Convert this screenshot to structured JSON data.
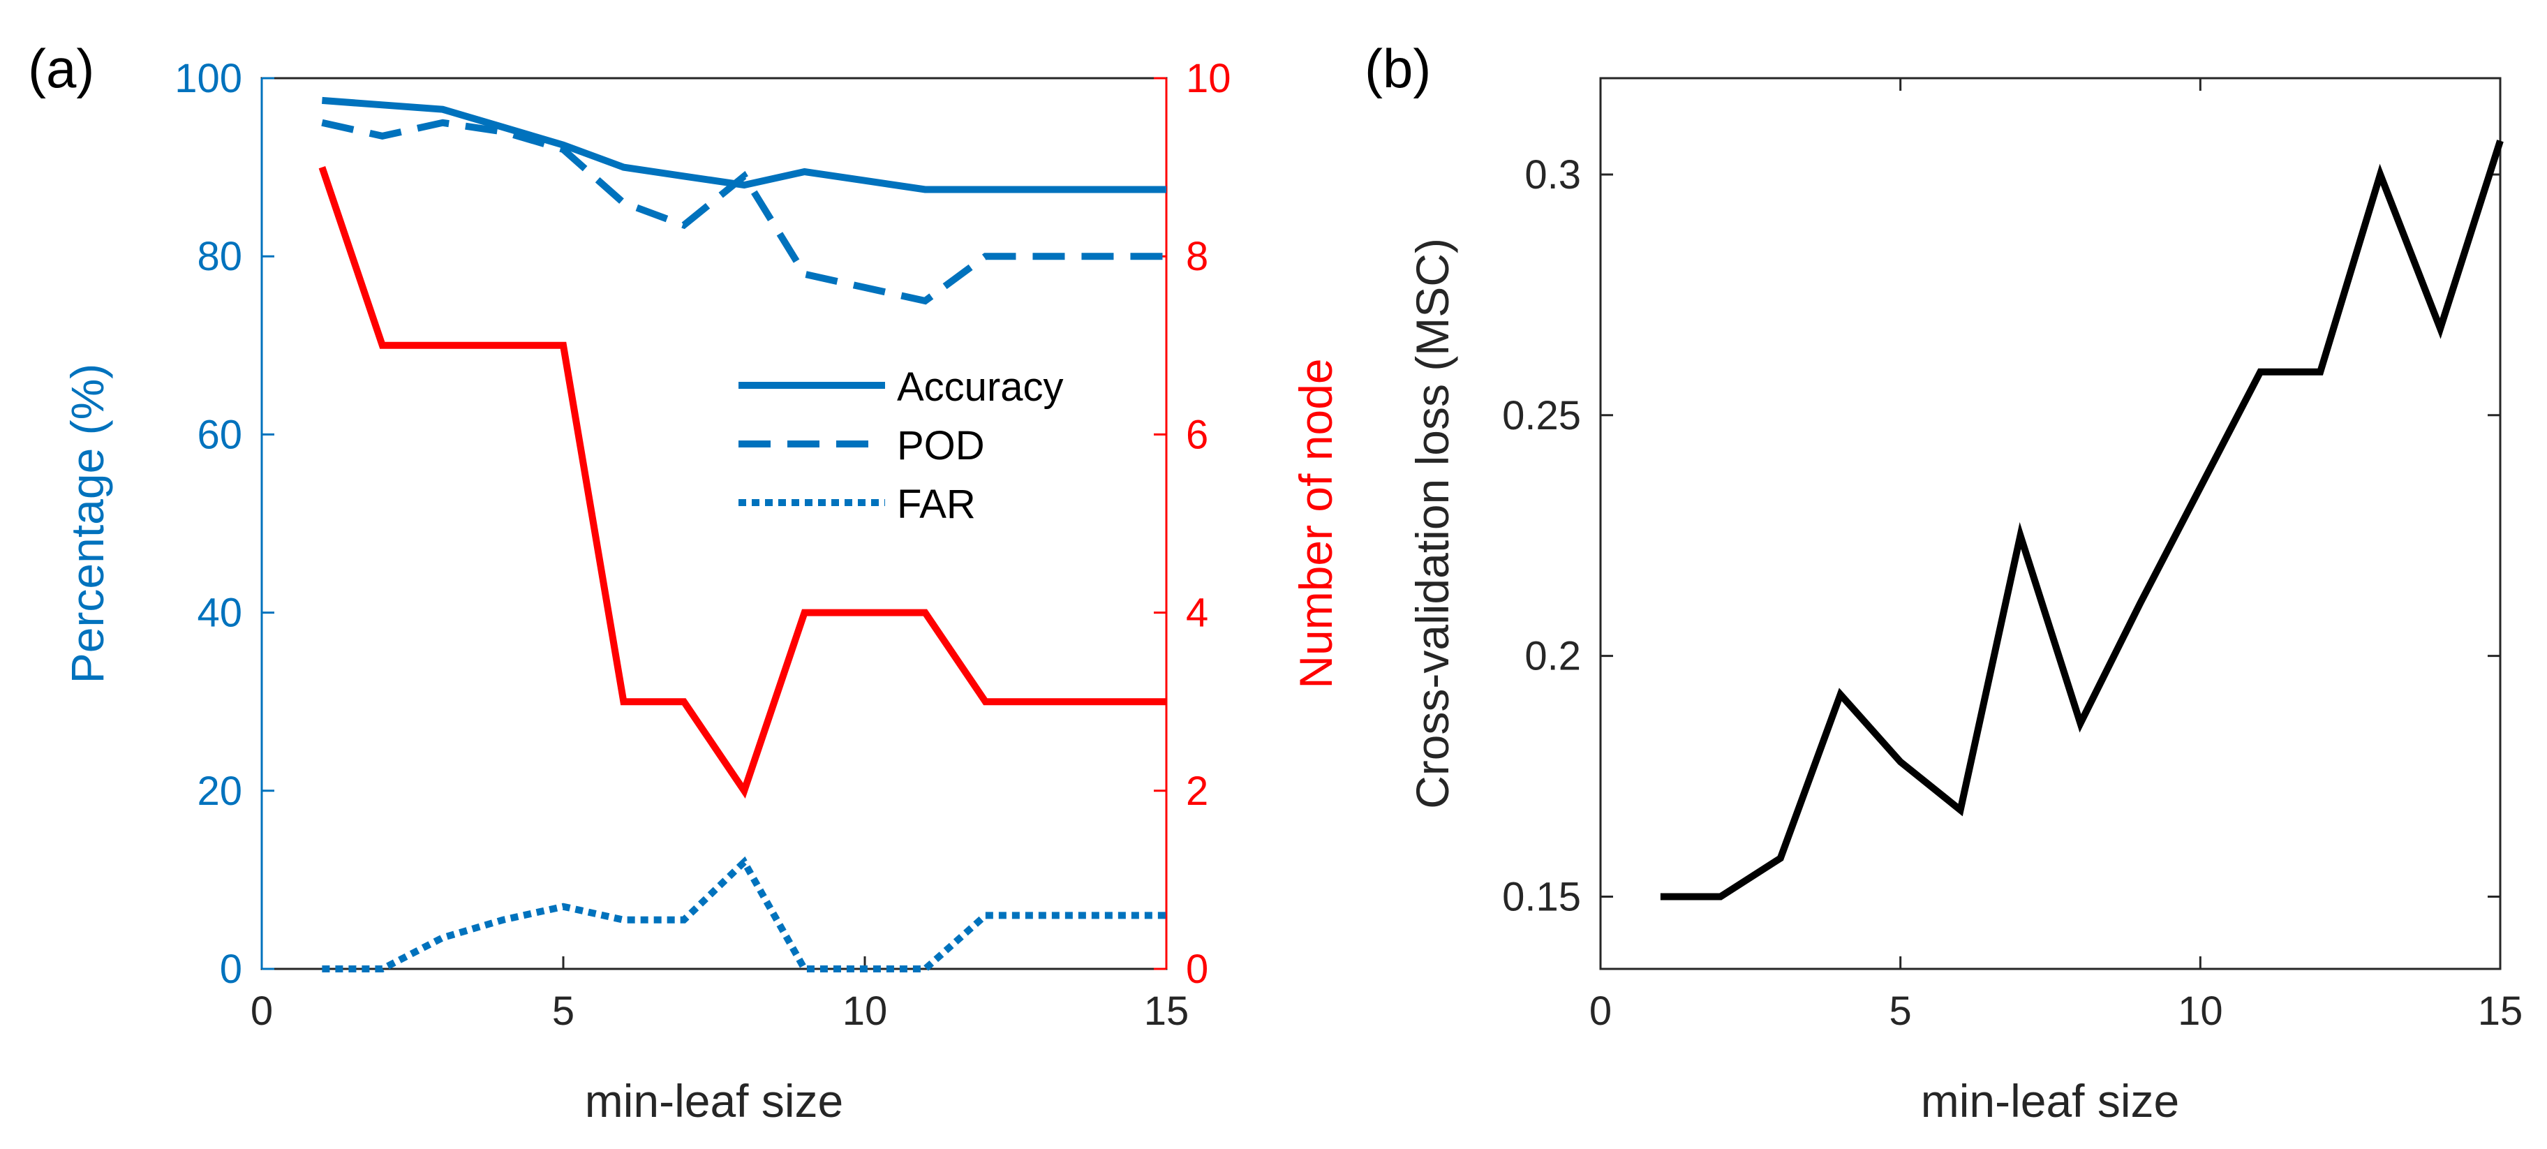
{
  "chart_data": [
    {
      "panel_label": "(a)",
      "type": "line",
      "xlabel": "min-leaf size",
      "ylabel_left": "Percentage (%)",
      "ylabel_right": "Number of node",
      "xlim": [
        0,
        15
      ],
      "ylim_left": [
        0,
        100
      ],
      "ylim_right": [
        0,
        10
      ],
      "xticks": [
        "0",
        "5",
        "10",
        "15"
      ],
      "yticks_left": [
        "0",
        "20",
        "40",
        "60",
        "80",
        "100"
      ],
      "yticks_right": [
        "0",
        "2",
        "4",
        "6",
        "8",
        "10"
      ],
      "grid": false,
      "legend_position": "center-right",
      "x": [
        1,
        2,
        3,
        4,
        5,
        6,
        7,
        8,
        9,
        10,
        11,
        12,
        13,
        14,
        15
      ],
      "series": [
        {
          "name": "Accuracy",
          "axis": "left",
          "style": "solid",
          "color": "#0072BD",
          "values": [
            97.5,
            97,
            96.5,
            94.5,
            92.5,
            90,
            89,
            88,
            89.5,
            88.5,
            87.5,
            87.5,
            87.5,
            87.5,
            87.5
          ]
        },
        {
          "name": "POD",
          "axis": "left",
          "style": "dashed",
          "color": "#0072BD",
          "values": [
            95,
            93.5,
            95,
            94,
            92,
            86,
            83.5,
            89,
            78,
            76.5,
            75,
            80,
            80,
            80,
            80
          ]
        },
        {
          "name": "FAR",
          "axis": "left",
          "style": "dotted",
          "color": "#0072BD",
          "values": [
            0,
            0,
            3.5,
            5.5,
            7,
            5.5,
            5.5,
            12,
            0,
            0,
            0,
            6,
            6,
            6,
            6
          ]
        },
        {
          "axis": "right",
          "style": "solid",
          "color": "#FF0000",
          "values": [
            9,
            7,
            7,
            7,
            7,
            3,
            3,
            2,
            4,
            4,
            4,
            3,
            3,
            3,
            3
          ]
        }
      ]
    },
    {
      "panel_label": "(b)",
      "type": "line",
      "xlabel": "min-leaf size",
      "ylabel": "Cross-validation loss (MSC)",
      "xlim": [
        0,
        15
      ],
      "ylim": [
        0.135,
        0.32
      ],
      "xticks": [
        "0",
        "5",
        "10",
        "15"
      ],
      "yticks": [
        "0.15",
        "0.2",
        "0.25",
        "0.3"
      ],
      "grid": false,
      "x": [
        1,
        2,
        3,
        4,
        5,
        6,
        7,
        8,
        9,
        10,
        11,
        12,
        13,
        14,
        15
      ],
      "series": [
        {
          "style": "solid",
          "color": "#000000",
          "values": [
            0.15,
            0.15,
            0.158,
            0.192,
            0.178,
            0.168,
            0.225,
            0.186,
            0.211,
            0.235,
            0.259,
            0.259,
            0.3,
            0.268,
            0.307
          ]
        }
      ]
    }
  ]
}
